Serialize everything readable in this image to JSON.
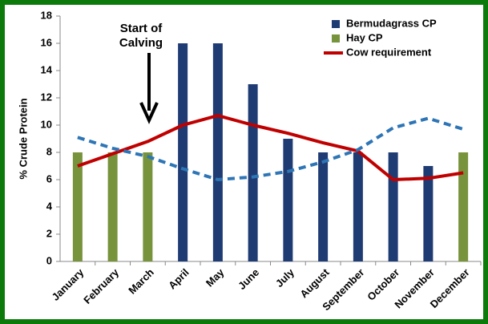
{
  "chart_data": {
    "type": "bar",
    "y_label": "% Crude Protein",
    "annotation": [
      "Start of",
      "Calving"
    ],
    "categories": [
      "January",
      "February",
      "March",
      "April",
      "May",
      "June",
      "July",
      "August",
      "September",
      "October",
      "November",
      "December"
    ],
    "series": [
      {
        "name": "Bermudagrass CP",
        "color": "#1f3b73",
        "kind": "bar",
        "values": [
          null,
          null,
          null,
          16,
          16,
          13,
          9,
          8,
          8,
          8,
          7,
          null
        ]
      },
      {
        "name": "Hay CP",
        "color": "#77933c",
        "kind": "bar",
        "values": [
          8,
          8,
          8,
          null,
          null,
          null,
          null,
          null,
          null,
          null,
          null,
          8
        ]
      },
      {
        "name": "Cow requirement",
        "color": "#c00000",
        "kind": "line",
        "values": [
          7,
          7.9,
          8.8,
          10,
          10.7,
          10,
          9.4,
          8.7,
          8.1,
          6,
          6.1,
          6.5
        ]
      },
      {
        "color": "#2e75b6",
        "kind": "dashed",
        "values": [
          9.1,
          8.3,
          7.7,
          6.8,
          6.0,
          6.2,
          6.6,
          7.3,
          8.2,
          9.8,
          10.5,
          9.7
        ]
      }
    ],
    "ylim": [
      0,
      18
    ],
    "yticks": [
      0,
      2,
      4,
      6,
      8,
      10,
      12,
      14,
      16,
      18
    ],
    "grid": false,
    "legend": "top-right"
  }
}
